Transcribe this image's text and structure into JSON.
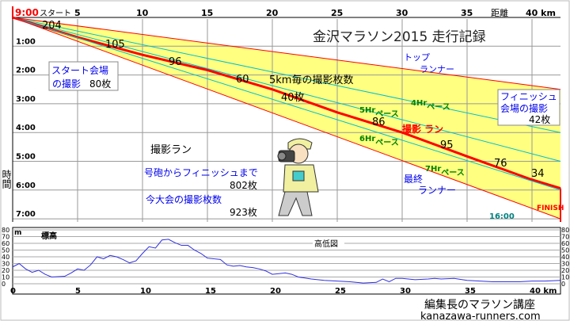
{
  "title": "金沢マラソン2015 走行記録",
  "chart_data": [
    {
      "type": "line",
      "title": "金沢マラソン2015 走行記録",
      "xlabel": "距離",
      "x_unit": "km",
      "ylabel": "時間",
      "start_label": "9:00",
      "start_text": "スタート",
      "x_ticks": [
        5,
        10,
        15,
        20,
        25,
        30,
        35,
        40
      ],
      "xlim": [
        0,
        42.195
      ],
      "y_ticks": [
        "1:00",
        "2:00",
        "3:00",
        "4:00",
        "5:00",
        "6:00",
        "7:00"
      ],
      "ylim_hours": [
        0,
        7
      ],
      "finish_time": "16:00",
      "finish_label": "FINISH",
      "series": [
        {
          "name": "トップランナー",
          "km": [
            0,
            42.195
          ],
          "hours": [
            0,
            2.5
          ],
          "color": "#ff0000"
        },
        {
          "name": "4Hrペース",
          "km": [
            0,
            42.195
          ],
          "hours": [
            0,
            4.0
          ],
          "color": "#00c0d0"
        },
        {
          "name": "5Hrペース",
          "km": [
            0,
            42.195
          ],
          "hours": [
            0,
            5.0
          ],
          "color": "#00c0d0"
        },
        {
          "name": "撮影ラン",
          "km": [
            0,
            5,
            10,
            15,
            20,
            25,
            30,
            35,
            40,
            42.195
          ],
          "hours": [
            0,
            0.69,
            1.3,
            1.83,
            2.5,
            3.3,
            4.0,
            4.83,
            5.64,
            5.94
          ],
          "color": "#ff0000"
        },
        {
          "name": "6Hrペース",
          "km": [
            0,
            42.195
          ],
          "hours": [
            0,
            6.0
          ],
          "color": "#00c0d0"
        },
        {
          "name": "最終ランナー / 7Hrペース",
          "km": [
            0,
            42.195
          ],
          "hours": [
            0,
            7.0
          ],
          "color": "#ff0000"
        }
      ],
      "runner_labels": {
        "top": [
          "トップ",
          "ランナー"
        ],
        "last": [
          "最終",
          "ランナー"
        ],
        "photo": "撮影 ラン"
      },
      "pace_labels": [
        {
          "hr": "4Hr",
          "text": "ペース"
        },
        {
          "hr": "5Hr",
          "text": "ペース"
        },
        {
          "hr": "6Hr",
          "text": "ペース"
        },
        {
          "hr": "7Hr",
          "text": "ペース"
        }
      ],
      "photos_per_5km_title": "5km毎の撮影枚数",
      "photos_per_5km": [
        "204",
        "105",
        "96",
        "60",
        "40枚",
        "86",
        "95",
        "76",
        "34"
      ],
      "start_box": {
        "line1": "スタート会場",
        "line2": "の撮影",
        "count": "80枚"
      },
      "finish_box": {
        "line1": "フィニッシュ",
        "line2": "会場の撮影",
        "count": "42枚"
      },
      "summary": {
        "heading": "撮影ラン",
        "line1": "号砲からフィニッシュまで",
        "count1": "802枚",
        "line2": "今大会の撮影枚数",
        "count2": "923枚"
      }
    },
    {
      "type": "line",
      "title": "高低図",
      "ylabel": "標高",
      "y_unit": "m",
      "ylim": [
        0,
        80
      ],
      "y_ticks": [
        0,
        10,
        20,
        30,
        40,
        50,
        60,
        70,
        80
      ],
      "x_ticks": [
        "0",
        "5",
        "10",
        "15",
        "20",
        "25",
        "30",
        "35",
        "40 km"
      ],
      "km": [
        0,
        0.5,
        1,
        1.5,
        2,
        2.5,
        3,
        4,
        4.5,
        5,
        5.5,
        6,
        6.5,
        7,
        7.5,
        8,
        8.5,
        9,
        9.5,
        10,
        10.5,
        11,
        11.5,
        12,
        12.5,
        13,
        13.5,
        14,
        14.5,
        15,
        16,
        16.5,
        17,
        17.5,
        18,
        18.5,
        19,
        19.5,
        20,
        21,
        21.5,
        22,
        23,
        24,
        25,
        26,
        27,
        28,
        28.5,
        29,
        29.5,
        30,
        31,
        32,
        32.5,
        33,
        34,
        35,
        36,
        37,
        38,
        39,
        40,
        41,
        42.195
      ],
      "elevation": [
        25,
        30,
        22,
        17,
        20,
        14,
        10,
        11,
        16,
        22,
        20,
        28,
        40,
        37,
        42,
        40,
        36,
        31,
        34,
        45,
        55,
        53,
        65,
        66,
        61,
        57,
        57,
        50,
        45,
        38,
        36,
        28,
        26,
        27,
        25,
        24,
        22,
        19,
        14,
        16,
        14,
        10,
        7,
        5,
        4,
        3,
        1,
        2,
        7,
        3,
        8,
        8,
        6,
        7,
        8,
        7,
        8,
        5,
        4,
        3,
        3,
        3,
        4,
        4,
        5
      ],
      "color": "#3030e0"
    }
  ],
  "footer": {
    "line1": "編集長のマラソン講座",
    "line2": "kanazawa-runners.com"
  }
}
